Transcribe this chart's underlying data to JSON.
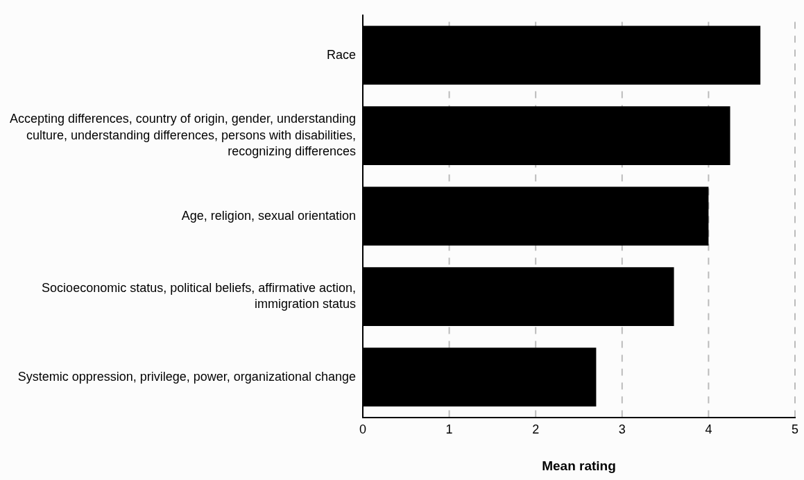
{
  "chart_data": {
    "type": "bar",
    "orientation": "horizontal",
    "xlabel": "Mean rating",
    "categories": [
      "Race",
      "Accepting differences, country of origin, gender, understanding culture, understanding differences, persons with disabilities, recognizing differences",
      "Age, religion, sexual orientation",
      "Socioeconomic status, political beliefs, affirmative action, immigration status",
      "Systemic oppression, privilege, power, organizational change"
    ],
    "values": [
      4.6,
      4.25,
      4.0,
      3.6,
      2.7
    ],
    "color": "#000000",
    "xlim": [
      0,
      5
    ],
    "xticks": [
      0,
      1,
      2,
      3,
      4,
      5
    ],
    "grid": "x",
    "legend": false
  }
}
